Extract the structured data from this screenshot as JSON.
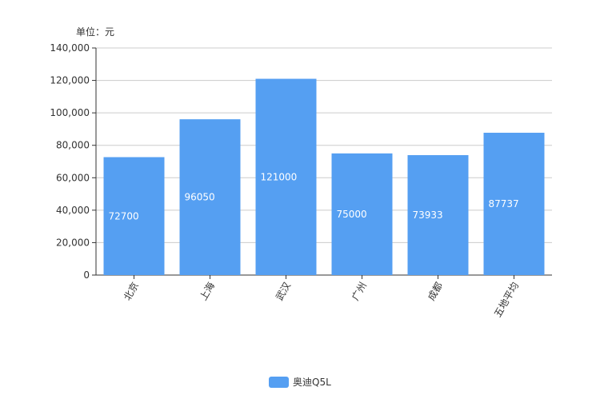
{
  "chart_data": {
    "type": "bar",
    "categories": [
      "北京",
      "上海",
      "武汉",
      "广州",
      "成都",
      "五地平均"
    ],
    "series": [
      {
        "name": "奥迪Q5L",
        "values": [
          72700,
          96050,
          121000,
          75000,
          73933,
          87737
        ],
        "color": "#559ff2"
      }
    ],
    "unit_label": "单位：元",
    "ylim": [
      0,
      140000
    ],
    "yticks": [
      0,
      20000,
      40000,
      60000,
      80000,
      100000,
      120000,
      140000
    ],
    "ytick_labels": [
      "0",
      "20,000",
      "40,000",
      "60,000",
      "80,000",
      "100,000",
      "120,000",
      "140,000"
    ],
    "data_labels": [
      "72700",
      "96050",
      "121000",
      "75000",
      "73933",
      "87737"
    ],
    "grid": true,
    "legend_position": "bottom-center"
  },
  "colors": {
    "bar": "#559ff2",
    "grid": "#cccccc",
    "axis": "#333333",
    "text": "#333333",
    "data_label": "#ffffff"
  }
}
